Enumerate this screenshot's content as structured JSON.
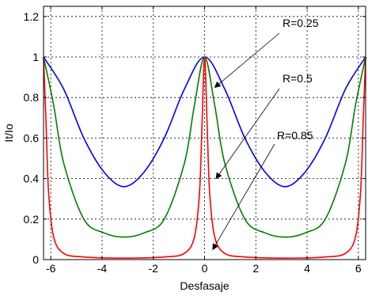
{
  "chart_data": {
    "type": "line",
    "title": "",
    "xlabel": "Desfasaje",
    "ylabel": "It/Io",
    "xlim": [
      -6.283,
      6.283
    ],
    "ylim": [
      0,
      1.25
    ],
    "grid": true,
    "x_ticks": [
      -6,
      -4,
      -2,
      0,
      2,
      4,
      6
    ],
    "x_tick_labels": [
      "-6",
      "-4",
      "-2",
      "0",
      "2",
      "4",
      "6"
    ],
    "y_ticks": [
      0,
      0.2,
      0.4,
      0.6,
      0.8,
      1.0,
      1.2
    ],
    "y_tick_labels": [
      "0",
      "0.2",
      "0.4",
      "0.6",
      "0.8",
      "1",
      "1.2"
    ],
    "series": [
      {
        "name": "R=0.25",
        "color": "#0000ff",
        "x": [
          -6.283,
          -5.498,
          -4.712,
          -3.927,
          -3.142,
          -2.356,
          -1.571,
          -0.785,
          0,
          0.785,
          1.571,
          2.356,
          3.142,
          3.927,
          4.712,
          5.498,
          6.283
        ],
        "y": [
          1.0,
          0.842,
          0.6,
          0.433,
          0.36,
          0.433,
          0.6,
          0.842,
          1.0,
          0.842,
          0.6,
          0.433,
          0.36,
          0.433,
          0.6,
          0.842,
          1.0
        ]
      },
      {
        "name": "R=0.5",
        "color": "#008000",
        "x": [
          -6.283,
          -5.89,
          -5.498,
          -4.712,
          -3.927,
          -3.142,
          -2.356,
          -1.571,
          -0.785,
          -0.393,
          0,
          0.393,
          0.785,
          1.571,
          2.356,
          3.142,
          3.927,
          4.712,
          5.498,
          5.89,
          6.283
        ],
        "y": [
          1.0,
          0.764,
          0.477,
          0.2,
          0.132,
          0.111,
          0.132,
          0.2,
          0.477,
          0.764,
          1.0,
          0.764,
          0.477,
          0.2,
          0.132,
          0.111,
          0.132,
          0.2,
          0.477,
          0.764,
          1.0
        ]
      },
      {
        "name": "R=0.85",
        "color": "#ff0000",
        "x": [
          -6.283,
          -6.185,
          -6.087,
          -5.89,
          -5.498,
          -4.712,
          -3.142,
          -1.571,
          -0.785,
          -0.393,
          -0.196,
          -0.098,
          0,
          0.098,
          0.196,
          0.393,
          0.785,
          1.571,
          3.142,
          4.712,
          5.498,
          5.89,
          6.087,
          6.185,
          6.283
        ],
        "y": [
          1.0,
          0.671,
          0.337,
          0.113,
          0.031,
          0.013,
          0.007,
          0.013,
          0.031,
          0.113,
          0.337,
          0.671,
          1.0,
          0.671,
          0.337,
          0.113,
          0.031,
          0.013,
          0.007,
          0.013,
          0.031,
          0.113,
          0.337,
          0.671,
          1.0
        ]
      }
    ],
    "annotations": [
      {
        "text": "R=0.25",
        "arrow_to": [
          0.4,
          0.85
        ]
      },
      {
        "text": "R=0.5",
        "arrow_to": [
          0.45,
          0.4
        ]
      },
      {
        "text": "R=0.85",
        "arrow_to": [
          0.32,
          0.05
        ]
      }
    ]
  }
}
